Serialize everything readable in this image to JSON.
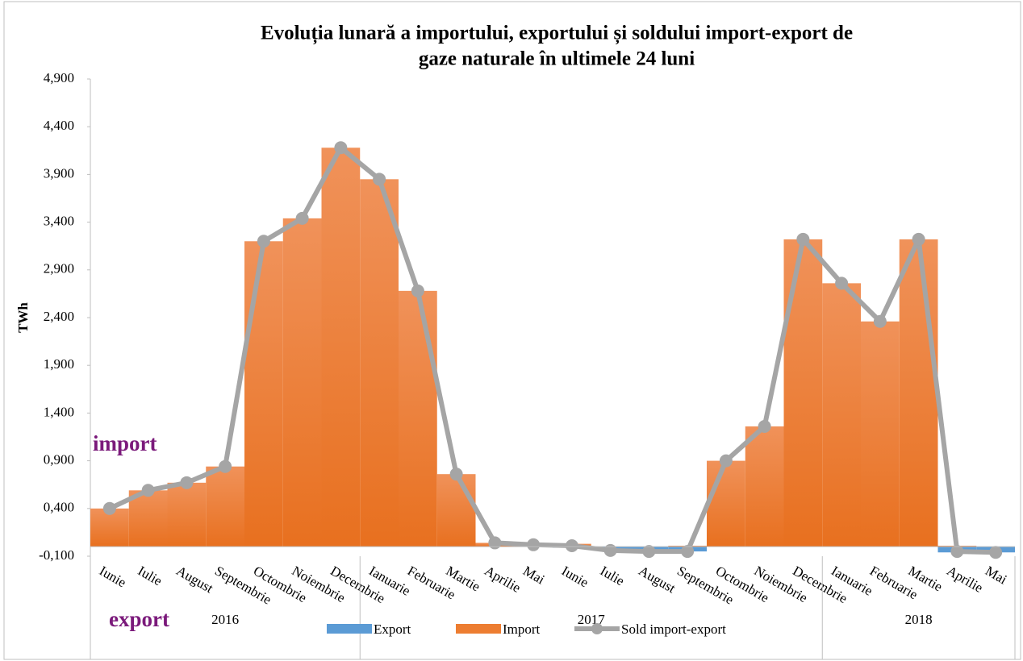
{
  "chart_data": {
    "type": "bar",
    "title": "Evoluția lunară a importului, exportului și soldului import-export de",
    "subtitle": "gaze naturale în ultimele 24 luni",
    "y_label": "TWh",
    "annotations": [
      "import",
      "export"
    ],
    "categories": [
      "Iunie",
      "Iulie",
      "August",
      "Septembrie",
      "Octombrie",
      "Noiembrie",
      "Decembrie",
      "Ianuarie",
      "Februarie",
      "Martie",
      "Aprilie",
      "Mai",
      "Iunie",
      "Iulie",
      "August",
      "Septembrie",
      "Octombrie",
      "Noiembrie",
      "Decembrie",
      "Ianuarie",
      "Februarie",
      "Martie",
      "Aprilie",
      "Mai"
    ],
    "years": [
      "2016",
      "2016",
      "2016",
      "2016",
      "2016",
      "2016",
      "2016",
      "2017",
      "2017",
      "2017",
      "2017",
      "2017",
      "2017",
      "2017",
      "2017",
      "2017",
      "2017",
      "2017",
      "2017",
      "2018",
      "2018",
      "2018",
      "2018",
      "2018"
    ],
    "series": [
      {
        "name": "Export",
        "color": "#5b9bd5",
        "values": [
          0,
          0,
          0,
          0,
          0,
          0,
          0,
          0,
          0,
          0,
          0,
          0,
          -0.01,
          -0.04,
          -0.05,
          -0.05,
          0,
          0,
          0,
          0,
          0,
          0,
          -0.06,
          -0.06
        ]
      },
      {
        "name": "Import",
        "color": "#ed7d31",
        "values": [
          0.4,
          0.59,
          0.67,
          0.84,
          3.2,
          3.44,
          4.18,
          3.85,
          2.68,
          0.76,
          0.04,
          0.03,
          0.03,
          0,
          0,
          0.01,
          0.9,
          1.26,
          3.22,
          2.76,
          2.36,
          3.22,
          0.01,
          0
        ]
      },
      {
        "name": "Sold import-export",
        "color": "#a5a5a5",
        "line": true,
        "values": [
          0.4,
          0.59,
          0.67,
          0.84,
          3.2,
          3.44,
          4.18,
          3.85,
          2.68,
          0.76,
          0.04,
          0.02,
          0.01,
          -0.04,
          -0.05,
          -0.05,
          0.9,
          1.26,
          3.22,
          2.76,
          2.36,
          3.22,
          -0.05,
          -0.06
        ]
      }
    ],
    "ylim": [
      -0.1,
      4.9
    ],
    "yticks": [
      {
        "value": -0.1,
        "label": "-0,100"
      },
      {
        "value": 0.4,
        "label": "0,400"
      },
      {
        "value": 0.9,
        "label": "0,900"
      },
      {
        "value": 1.4,
        "label": "1,400"
      },
      {
        "value": 1.9,
        "label": "1,900"
      },
      {
        "value": 2.4,
        "label": "2,400"
      },
      {
        "value": 2.9,
        "label": "2,900"
      },
      {
        "value": 3.4,
        "label": "3,400"
      },
      {
        "value": 3.9,
        "label": "3,900"
      },
      {
        "value": 4.4,
        "label": "4,400"
      },
      {
        "value": 4.9,
        "label": "4,900"
      }
    ],
    "legend": "bottom"
  }
}
